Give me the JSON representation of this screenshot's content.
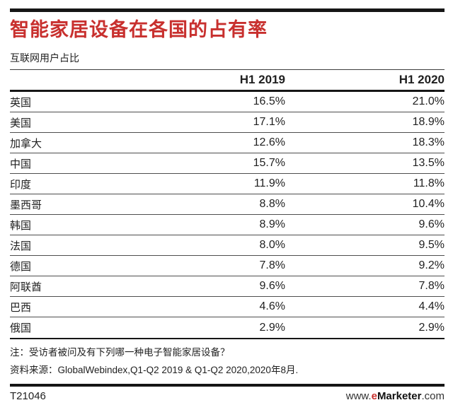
{
  "accent_red": "#c8302e",
  "header": {
    "title": "智能家居设备在各国的占有率",
    "subtitle": "互联网用户占比"
  },
  "table": {
    "col_h1_2019": "H1 2019",
    "col_h1_2020": "H1 2020",
    "rows": [
      {
        "country": "英国",
        "h1_2019": "16.5%",
        "h1_2020": "21.0%"
      },
      {
        "country": "美国",
        "h1_2019": "17.1%",
        "h1_2020": "18.9%"
      },
      {
        "country": "加拿大",
        "h1_2019": "12.6%",
        "h1_2020": "18.3%"
      },
      {
        "country": "中国",
        "h1_2019": "15.7%",
        "h1_2020": "13.5%"
      },
      {
        "country": "印度",
        "h1_2019": "11.9%",
        "h1_2020": "11.8%"
      },
      {
        "country": "墨西哥",
        "h1_2019": "8.8%",
        "h1_2020": "10.4%"
      },
      {
        "country": "韩国",
        "h1_2019": "8.9%",
        "h1_2020": "9.6%"
      },
      {
        "country": "法国",
        "h1_2019": "8.0%",
        "h1_2020": "9.5%"
      },
      {
        "country": "德国",
        "h1_2019": "7.8%",
        "h1_2020": "9.2%"
      },
      {
        "country": "阿联酋",
        "h1_2019": "9.6%",
        "h1_2020": "7.8%"
      },
      {
        "country": "巴西",
        "h1_2019": "4.6%",
        "h1_2020": "4.4%"
      },
      {
        "country": "俄国",
        "h1_2019": "2.9%",
        "h1_2020": "2.9%"
      }
    ]
  },
  "chart_data": {
    "type": "table",
    "title": "智能家居设备在各国的占有率",
    "subtitle": "互联网用户占比",
    "categories": [
      "英国",
      "美国",
      "加拿大",
      "中国",
      "印度",
      "墨西哥",
      "韩国",
      "法国",
      "德国",
      "阿联酋",
      "巴西",
      "俄国"
    ],
    "series": [
      {
        "name": "H1 2019",
        "values": [
          16.5,
          17.1,
          12.6,
          15.7,
          11.9,
          8.8,
          8.9,
          8.0,
          7.8,
          9.6,
          4.6,
          2.9
        ]
      },
      {
        "name": "H1 2020",
        "values": [
          21.0,
          18.9,
          18.3,
          13.5,
          11.8,
          10.4,
          9.6,
          9.5,
          9.2,
          7.8,
          4.4,
          2.9
        ]
      }
    ],
    "unit": "%",
    "note": "注：受访者被问及有下列哪一种电子智能家居设备？",
    "source": "资料来源：GlobalWebindex,Q1-Q2 2019 & Q1-Q2 2020,2020年8月.",
    "chart_id": "T21046"
  },
  "footnotes": {
    "note": "注：受访者被问及有下列哪一种电子智能家居设备？",
    "source": "资料来源：GlobalWebindex,Q1-Q2 2019 & Q1-Q2 2020,2020年8月."
  },
  "footer": {
    "chart_id": "T21046",
    "site_prefix": "www.",
    "site_e": "e",
    "site_name": "Marketer",
    "site_suffix": ".com"
  }
}
